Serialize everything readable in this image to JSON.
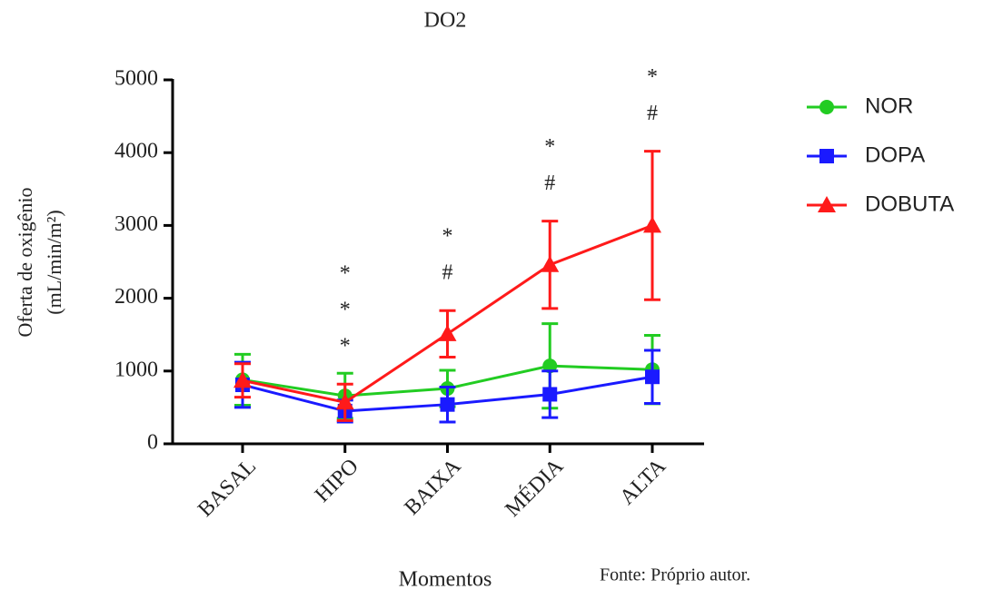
{
  "chart_data": {
    "type": "line",
    "title": "DO2",
    "x_label": "Momentos",
    "y_label": [
      "Oferta de oxigênio",
      "(mL/min/m²)"
    ],
    "source": "Fonte: Próprio autor.",
    "categories": [
      "BASAL",
      "HIPO",
      "BAIXA",
      "MÉDIA",
      "ALTA"
    ],
    "ylim": [
      0,
      5000
    ],
    "yticks": [
      0,
      1000,
      2000,
      3000,
      4000,
      5000
    ],
    "series": [
      {
        "name": "NOR",
        "color": "#22cc22",
        "marker": "circle",
        "values": [
          880,
          660,
          760,
          1070,
          1020
        ],
        "errors": [
          350,
          310,
          250,
          580,
          470
        ]
      },
      {
        "name": "DOPA",
        "color": "#1a1aff",
        "marker": "square",
        "values": [
          810,
          450,
          540,
          680,
          920
        ],
        "errors": [
          310,
          150,
          240,
          320,
          365
        ]
      },
      {
        "name": "DOBUTA",
        "color": "#ff1a1a",
        "marker": "triangle",
        "values": [
          870,
          570,
          1510,
          2460,
          3000
        ],
        "errors": [
          230,
          250,
          320,
          600,
          1020
        ]
      }
    ],
    "annotations": [
      [],
      [
        "*",
        "*",
        "*"
      ],
      [
        "*",
        "#"
      ],
      [
        "*",
        "#"
      ],
      [
        "*",
        "#"
      ]
    ]
  }
}
